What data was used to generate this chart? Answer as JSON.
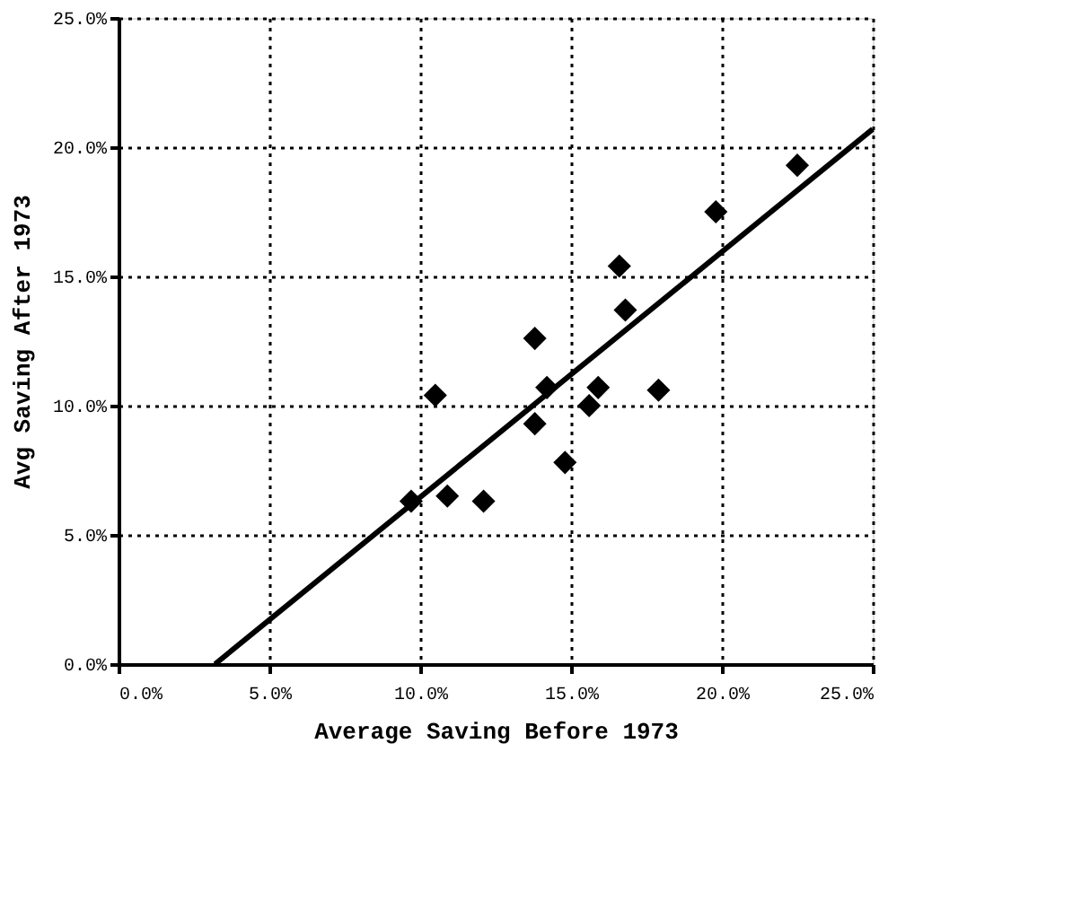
{
  "chart_data": {
    "type": "scatter",
    "xlabel": "Average Saving Before 1973",
    "ylabel": "Avg Saving After 1973",
    "xlim": [
      0,
      25
    ],
    "ylim": [
      0,
      25
    ],
    "xticks": [
      {
        "value": 0,
        "label": "0.0%"
      },
      {
        "value": 5,
        "label": "5.0%"
      },
      {
        "value": 10,
        "label": "10.0%"
      },
      {
        "value": 15,
        "label": "15.0%"
      },
      {
        "value": 20,
        "label": "20.0%"
      },
      {
        "value": 25,
        "label": "25.0%"
      }
    ],
    "yticks": [
      {
        "value": 0,
        "label": "0.0%"
      },
      {
        "value": 5,
        "label": "5.0%"
      },
      {
        "value": 10,
        "label": "10.0%"
      },
      {
        "value": 15,
        "label": "15.0%"
      },
      {
        "value": 20,
        "label": "20.0%"
      },
      {
        "value": 25,
        "label": "25.0%"
      }
    ],
    "grid": true,
    "series": [
      {
        "marker": "diamond",
        "color": "#000000",
        "x": [
          9.7,
          10.9,
          12.1,
          10.5,
          13.8,
          14.2,
          14.8,
          15.6,
          15.9,
          17.9,
          13.8,
          16.8,
          16.6,
          19.8,
          22.5
        ],
        "values": [
          6.3,
          6.5,
          6.3,
          10.4,
          9.3,
          10.7,
          7.8,
          10.0,
          10.7,
          10.6,
          12.6,
          13.7,
          15.4,
          17.5,
          19.3
        ]
      },
      {
        "type": "line",
        "marker": "none",
        "line_style": "solid",
        "color": "#000000",
        "x": [
          3.2,
          25
        ],
        "values": [
          0,
          20.7
        ]
      }
    ]
  }
}
